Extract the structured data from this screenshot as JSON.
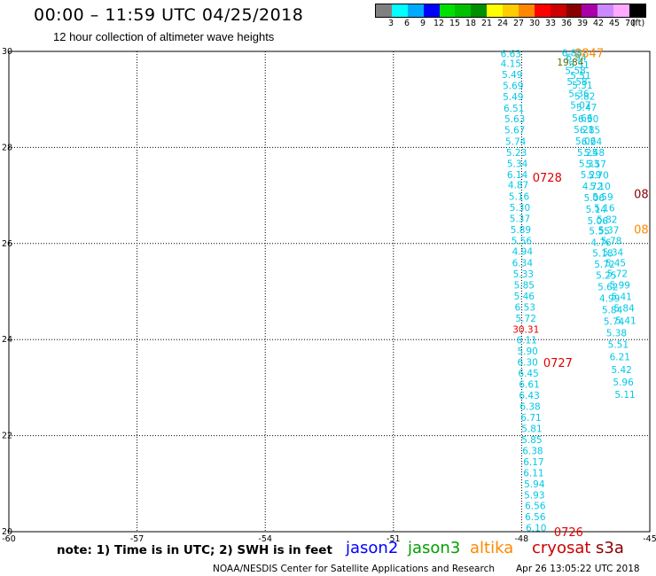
{
  "header": {
    "title": "00:00 – 11:59 UTC 04/25/2018",
    "subtitle": "12 hour collection of altimeter wave heights"
  },
  "legend": {
    "colors": [
      "#808080",
      "#00ffff",
      "#00aaff",
      "#0000ff",
      "#00e000",
      "#00c000",
      "#009000",
      "#ffff00",
      "#ffcc00",
      "#ff8800",
      "#ff0000",
      "#cc0000",
      "#880000",
      "#aa00aa",
      "#cc88ff",
      "#ffaaff",
      "#000000"
    ],
    "labels": [
      "3",
      "6",
      "9",
      "12",
      "15",
      "18",
      "21",
      "24",
      "27",
      "30",
      "33",
      "36",
      "39",
      "42",
      "45",
      "70",
      "(ft)"
    ]
  },
  "map": {
    "lon_labels": [
      "-60",
      "-57",
      "-54",
      "-51",
      "-48",
      "-45"
    ],
    "lat_labels": [
      "30",
      "28",
      "26",
      "24",
      "22",
      "20"
    ],
    "lon_range": [
      -60,
      -45
    ],
    "lat_range": [
      20,
      30
    ],
    "track_a": [
      {
        "lat": 29.95,
        "lon": -48.25,
        "v": "6.63"
      },
      {
        "lat": 29.75,
        "lon": -48.25,
        "v": "4.15"
      },
      {
        "lat": 29.52,
        "lon": -48.22,
        "v": "5.49"
      },
      {
        "lat": 29.29,
        "lon": -48.2,
        "v": "5.69"
      },
      {
        "lat": 29.06,
        "lon": -48.2,
        "v": "5.49"
      },
      {
        "lat": 28.82,
        "lon": -48.18,
        "v": "6.51"
      },
      {
        "lat": 28.6,
        "lon": -48.16,
        "v": "5.63"
      },
      {
        "lat": 28.37,
        "lon": -48.16,
        "v": "5.67"
      },
      {
        "lat": 28.13,
        "lon": -48.14,
        "v": "5.74"
      },
      {
        "lat": 27.9,
        "lon": -48.12,
        "v": "5.23"
      },
      {
        "lat": 27.67,
        "lon": -48.1,
        "v": "5.34"
      },
      {
        "lat": 27.44,
        "lon": -48.1,
        "v": "6.14"
      },
      {
        "lat": 27.22,
        "lon": -48.08,
        "v": "4.87"
      },
      {
        "lat": 26.98,
        "lon": -48.06,
        "v": "5.16"
      },
      {
        "lat": 26.75,
        "lon": -48.04,
        "v": "5.30"
      },
      {
        "lat": 26.52,
        "lon": -48.04,
        "v": "5.37"
      },
      {
        "lat": 26.29,
        "lon": -48.02,
        "v": "5.89"
      },
      {
        "lat": 26.06,
        "lon": -48.0,
        "v": "5.56"
      },
      {
        "lat": 25.84,
        "lon": -47.98,
        "v": "4.94"
      },
      {
        "lat": 25.6,
        "lon": -47.98,
        "v": "6.34"
      },
      {
        "lat": 25.37,
        "lon": -47.96,
        "v": "5.33"
      },
      {
        "lat": 25.14,
        "lon": -47.94,
        "v": "5.85"
      },
      {
        "lat": 24.91,
        "lon": -47.94,
        "v": "5.46"
      },
      {
        "lat": 24.68,
        "lon": -47.92,
        "v": "6.53"
      },
      {
        "lat": 24.45,
        "lon": -47.9,
        "v": "5.72"
      },
      {
        "lat": 24.22,
        "lon": -47.9,
        "v": "30.31"
      },
      {
        "lat": 23.99,
        "lon": -47.88,
        "v": "6.11"
      },
      {
        "lat": 23.76,
        "lon": -47.86,
        "v": "5.90"
      },
      {
        "lat": 23.53,
        "lon": -47.86,
        "v": "6.30"
      },
      {
        "lat": 23.3,
        "lon": -47.84,
        "v": "6.45"
      },
      {
        "lat": 23.07,
        "lon": -47.82,
        "v": "6.61"
      },
      {
        "lat": 22.84,
        "lon": -47.82,
        "v": "6.43"
      },
      {
        "lat": 22.61,
        "lon": -47.8,
        "v": "6.38"
      },
      {
        "lat": 22.38,
        "lon": -47.78,
        "v": "6.71"
      },
      {
        "lat": 22.15,
        "lon": -47.76,
        "v": "5.81"
      },
      {
        "lat": 21.92,
        "lon": -47.76,
        "v": "5.85"
      },
      {
        "lat": 21.69,
        "lon": -47.74,
        "v": "6.38"
      },
      {
        "lat": 21.46,
        "lon": -47.72,
        "v": "6.17"
      },
      {
        "lat": 21.23,
        "lon": -47.72,
        "v": "6.11"
      },
      {
        "lat": 21.0,
        "lon": -47.7,
        "v": "5.94"
      },
      {
        "lat": 20.77,
        "lon": -47.7,
        "v": "5.93"
      },
      {
        "lat": 20.54,
        "lon": -47.68,
        "v": "6.56"
      },
      {
        "lat": 20.31,
        "lon": -47.68,
        "v": "6.56"
      },
      {
        "lat": 20.08,
        "lon": -47.66,
        "v": "6.10"
      }
    ],
    "track_b": [
      {
        "lat": 29.97,
        "lon": -46.82,
        "v": "6.88"
      },
      {
        "lat": 29.88,
        "lon": -46.72,
        "v": "6.94"
      },
      {
        "lat": 29.78,
        "lon": -46.86,
        "v": "19.84"
      },
      {
        "lat": 29.72,
        "lon": -46.66,
        "v": "5.51"
      },
      {
        "lat": 29.6,
        "lon": -46.74,
        "v": "5.58"
      },
      {
        "lat": 29.5,
        "lon": -46.62,
        "v": "5.51"
      },
      {
        "lat": 29.37,
        "lon": -46.7,
        "v": "5.58"
      },
      {
        "lat": 29.3,
        "lon": -46.58,
        "v": "5.31"
      },
      {
        "lat": 29.12,
        "lon": -46.66,
        "v": "5.36"
      },
      {
        "lat": 29.07,
        "lon": -46.52,
        "v": "5.82"
      },
      {
        "lat": 28.88,
        "lon": -46.62,
        "v": "5.07"
      },
      {
        "lat": 28.84,
        "lon": -46.48,
        "v": "5.47"
      },
      {
        "lat": 28.62,
        "lon": -46.58,
        "v": "5.66"
      },
      {
        "lat": 28.6,
        "lon": -46.44,
        "v": "6.30"
      },
      {
        "lat": 28.38,
        "lon": -46.54,
        "v": "5.21"
      },
      {
        "lat": 28.37,
        "lon": -46.4,
        "v": "6.85"
      },
      {
        "lat": 28.14,
        "lon": -46.5,
        "v": "5.06"
      },
      {
        "lat": 28.13,
        "lon": -46.36,
        "v": "6.24"
      },
      {
        "lat": 27.9,
        "lon": -46.46,
        "v": "5.25"
      },
      {
        "lat": 27.9,
        "lon": -46.3,
        "v": "5.48"
      },
      {
        "lat": 27.67,
        "lon": -46.42,
        "v": "5.33"
      },
      {
        "lat": 27.66,
        "lon": -46.26,
        "v": "5.57"
      },
      {
        "lat": 27.44,
        "lon": -46.38,
        "v": "5.29"
      },
      {
        "lat": 27.43,
        "lon": -46.2,
        "v": "5.70"
      },
      {
        "lat": 27.2,
        "lon": -46.34,
        "v": "4.72"
      },
      {
        "lat": 27.2,
        "lon": -46.16,
        "v": "5.10"
      },
      {
        "lat": 26.96,
        "lon": -46.3,
        "v": "5.06"
      },
      {
        "lat": 26.97,
        "lon": -46.1,
        "v": "5.59"
      },
      {
        "lat": 26.72,
        "lon": -46.26,
        "v": "5.14"
      },
      {
        "lat": 26.74,
        "lon": -46.06,
        "v": "5.16"
      },
      {
        "lat": 26.48,
        "lon": -46.22,
        "v": "5.06"
      },
      {
        "lat": 26.5,
        "lon": -46.0,
        "v": "5.82"
      },
      {
        "lat": 26.26,
        "lon": -46.18,
        "v": "5.55"
      },
      {
        "lat": 26.28,
        "lon": -45.96,
        "v": "5.37"
      },
      {
        "lat": 26.02,
        "lon": -46.14,
        "v": "4.76"
      },
      {
        "lat": 26.06,
        "lon": -45.9,
        "v": "5.78"
      },
      {
        "lat": 25.8,
        "lon": -46.1,
        "v": "5.18"
      },
      {
        "lat": 25.82,
        "lon": -45.86,
        "v": "5.34"
      },
      {
        "lat": 25.57,
        "lon": -46.06,
        "v": "5.72"
      },
      {
        "lat": 25.6,
        "lon": -45.8,
        "v": "5.45"
      },
      {
        "lat": 25.34,
        "lon": -46.02,
        "v": "5.25"
      },
      {
        "lat": 25.38,
        "lon": -45.76,
        "v": "5.72"
      },
      {
        "lat": 25.1,
        "lon": -45.98,
        "v": "5.62"
      },
      {
        "lat": 25.14,
        "lon": -45.7,
        "v": "5.99"
      },
      {
        "lat": 24.86,
        "lon": -45.94,
        "v": "4.99"
      },
      {
        "lat": 24.9,
        "lon": -45.66,
        "v": "5.41"
      },
      {
        "lat": 24.62,
        "lon": -45.88,
        "v": "5.84"
      },
      {
        "lat": 24.66,
        "lon": -45.6,
        "v": "5.84"
      },
      {
        "lat": 24.38,
        "lon": -45.84,
        "v": "5.74"
      },
      {
        "lat": 24.4,
        "lon": -45.56,
        "v": "5.41"
      },
      {
        "lat": 24.14,
        "lon": -45.78,
        "v": "5.38"
      },
      {
        "lat": 23.9,
        "lon": -45.74,
        "v": "5.51"
      },
      {
        "lat": 23.64,
        "lon": -45.7,
        "v": "6.21"
      },
      {
        "lat": 23.38,
        "lon": -45.66,
        "v": "5.42"
      },
      {
        "lat": 23.12,
        "lon": -45.62,
        "v": "5.96"
      },
      {
        "lat": 22.86,
        "lon": -45.58,
        "v": "5.11"
      }
    ],
    "time_labels": [
      {
        "lat": 29.97,
        "lon": -46.42,
        "v": "0847",
        "c": "#ff8800"
      },
      {
        "lat": 27.38,
        "lon": -47.4,
        "v": "0728",
        "c": "#e00000"
      },
      {
        "lat": 23.52,
        "lon": -47.15,
        "v": "0727",
        "c": "#e00000"
      },
      {
        "lat": 20.0,
        "lon": -46.9,
        "v": "0726",
        "c": "#e00000"
      },
      {
        "lat": 27.04,
        "lon": -45.2,
        "v": "08",
        "c": "#880000"
      },
      {
        "lat": 26.3,
        "lon": -45.2,
        "v": "08",
        "c": "#ff8800"
      }
    ]
  },
  "footer": {
    "note": "note: 1) Time is in UTC; 2) SWH is in feet",
    "satellites": [
      {
        "name": "jason2",
        "color": "#0000ff"
      },
      {
        "name": "jason3",
        "color": "#00a000"
      },
      {
        "name": "altika",
        "color": "#ff8800"
      },
      {
        "name": "cryosat",
        "color": "#cc0000"
      },
      {
        "name": "s3a",
        "color": "#880000"
      }
    ],
    "credit": "NOAA/NESDIS Center for Satellite Applications and Research",
    "timestamp": "Apr 26 13:05:22 UTC 2018"
  }
}
